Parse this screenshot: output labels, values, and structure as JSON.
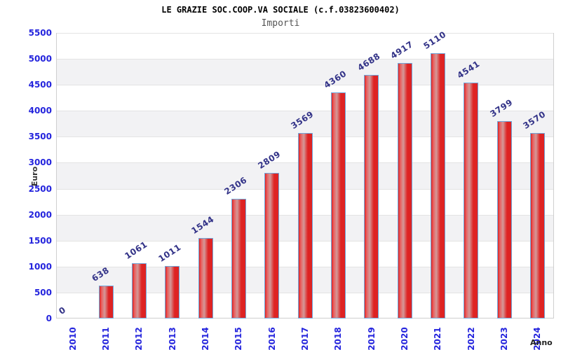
{
  "chart_data": {
    "type": "bar",
    "title": "LE GRAZIE SOC.COOP.VA SOCIALE (c.f.03823600402)",
    "subtitle": "Importi",
    "xlabel": "Anno",
    "ylabel": "Euro",
    "categories": [
      "2010",
      "2011",
      "2012",
      "2013",
      "2014",
      "2015",
      "2016",
      "2017",
      "2018",
      "2019",
      "2020",
      "2021",
      "2022",
      "2023",
      "2024"
    ],
    "values": [
      0,
      638,
      1061,
      1011,
      1544,
      2306,
      2809,
      3569,
      4360,
      4688,
      4917,
      5110,
      4541,
      3799,
      3570
    ],
    "ylim": [
      0,
      5500
    ],
    "ytick_step": 500,
    "yticks": [
      0,
      500,
      1000,
      1500,
      2000,
      2500,
      3000,
      3500,
      4000,
      4500,
      5000,
      5500
    ],
    "legend": "none",
    "grid": "horizontal gridlines every 500 with alternating gray bands",
    "bar_value_labels_rotated": true,
    "x_labels_rotated_vertical": true,
    "colors": {
      "bar_edge": "#de2323",
      "bar_light": "#e9605f",
      "bar_mid": "#d49898",
      "bar_border": "#6fa8dc",
      "tick_label": "#2424dd",
      "value_label": "#333388",
      "band": "#f2f2f4",
      "gridline": "#e3e3e3",
      "frame": "#cfcfcf",
      "subtitle_color": "#555555",
      "title_color": "#000000"
    }
  }
}
